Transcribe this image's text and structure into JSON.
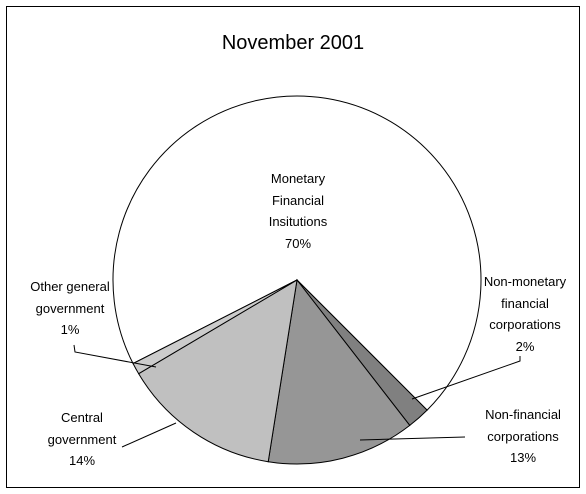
{
  "chart_data": {
    "type": "pie",
    "title": "November 2001",
    "labels": [
      "Monetary\nFinancial\nInsitutions",
      "Non-monetary\nfinancial\ncorporations",
      "Non-financial\ncorporations",
      "Central\ngovernment",
      "Other general\ngovernment"
    ],
    "values": [
      70,
      2,
      13,
      14,
      1
    ],
    "value_labels": [
      "70%",
      "2%",
      "13%",
      "14%",
      "1%"
    ],
    "colors": [
      "#ffffff",
      "#808080",
      "#969696",
      "#c0c0c0",
      "#cccccc"
    ]
  }
}
